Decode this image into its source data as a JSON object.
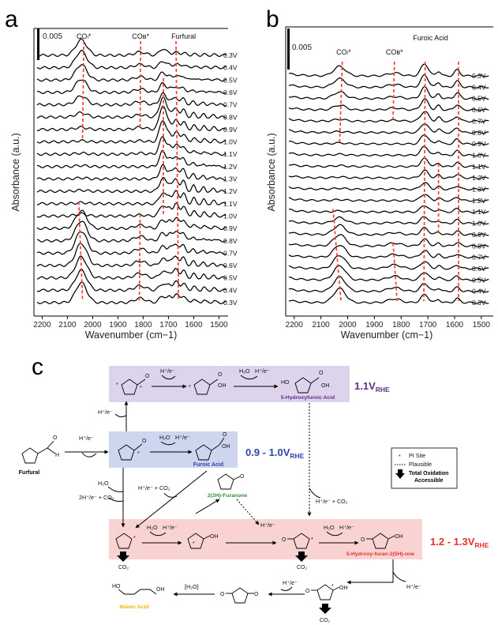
{
  "panels": {
    "a": "a",
    "b": "b",
    "c": "c"
  },
  "common": {
    "xlabel": "Wavenumber (cm−1)",
    "ylabel": "Absorbance (a.u.)",
    "scale_label": "0.005",
    "xticks": [
      2200,
      2100,
      2000,
      1900,
      1800,
      1700,
      1600,
      1500
    ]
  },
  "chart_data": [
    {
      "type": "line",
      "panel": "a",
      "xlim": [
        2220,
        1470
      ],
      "xlabel": "Wavenumber (cm−1)",
      "ylabel": "Absorbance (a.u.)",
      "scale_bar": "0.005",
      "annotations": [
        {
          "text": "COₗ*",
          "x": 2035
        },
        {
          "text": "COʙ*",
          "x": 1810
        },
        {
          "text": "Furfural",
          "x": 1640
        }
      ],
      "series": [
        {
          "name": "0.3V",
          "co_l": 0.7,
          "co_b": 0.15,
          "bands": 0.25,
          "c1700": 0.3
        },
        {
          "name": "0.4V",
          "co_l": 0.75,
          "co_b": 0.15,
          "bands": 0.3,
          "c1700": 0.3
        },
        {
          "name": "0.5V",
          "co_l": 0.7,
          "co_b": 0.15,
          "bands": 0.4,
          "c1700": 0.35
        },
        {
          "name": "0.6V",
          "co_l": 0.6,
          "co_b": 0.15,
          "bands": 0.5,
          "c1700": 0.4
        },
        {
          "name": "0.7V",
          "co_l": 0.4,
          "co_b": 0.15,
          "bands": 0.6,
          "c1700": 0.5
        },
        {
          "name": "0.8V",
          "co_l": 0.2,
          "co_b": 0.1,
          "bands": 0.7,
          "c1700": 0.9
        },
        {
          "name": "0.9V",
          "co_l": 0.1,
          "co_b": 0.1,
          "bands": 0.75,
          "c1700": 1.1
        },
        {
          "name": "1.0V",
          "co_l": 0.05,
          "co_b": 0.05,
          "bands": 0.8,
          "c1700": 1.0
        },
        {
          "name": "1.1V",
          "co_l": 0.05,
          "co_b": 0.05,
          "bands": 0.85,
          "c1700": 0.8
        },
        {
          "name": "1.2V",
          "co_l": 0.05,
          "co_b": 0.0,
          "bands": 0.9,
          "c1700": 0.7
        },
        {
          "name": "1.3V",
          "co_l": 0.05,
          "co_b": 0.0,
          "bands": 0.95,
          "c1700": 0.6
        },
        {
          "name": "1.2V",
          "co_l": 0.05,
          "co_b": 0.0,
          "bands": 1.0,
          "c1700": 0.6
        },
        {
          "name": "1.1V",
          "co_l": 0.05,
          "co_b": 0.0,
          "bands": 1.0,
          "c1700": 0.5
        },
        {
          "name": "1.0V",
          "co_l": 0.1,
          "co_b": 0.05,
          "bands": 1.0,
          "c1700": 0.5
        },
        {
          "name": "0.9V",
          "co_l": 0.8,
          "co_b": 0.15,
          "bands": 0.9,
          "c1700": 0.4
        },
        {
          "name": "0.8V",
          "co_l": 0.9,
          "co_b": 0.2,
          "bands": 0.85,
          "c1700": 0.35
        },
        {
          "name": "0.7V",
          "co_l": 1.0,
          "co_b": 0.2,
          "bands": 0.8,
          "c1700": 0.3
        },
        {
          "name": "0.6V",
          "co_l": 1.0,
          "co_b": 0.2,
          "bands": 0.75,
          "c1700": 0.3
        },
        {
          "name": "0.5V",
          "co_l": 0.95,
          "co_b": 0.2,
          "bands": 0.7,
          "c1700": 0.3
        },
        {
          "name": "0.4V",
          "co_l": 0.9,
          "co_b": 0.2,
          "bands": 0.7,
          "c1700": 0.3
        },
        {
          "name": "0.3V",
          "co_l": 0.9,
          "co_b": 0.2,
          "bands": 0.7,
          "c1700": 0.3
        }
      ],
      "markers": [
        {
          "x": [
            2035,
            2040
          ],
          "rows": [
            0,
            7
          ]
        },
        {
          "x": [
            1810,
            1812
          ],
          "rows": [
            0,
            6
          ]
        },
        {
          "x": [
            1670,
            1660
          ],
          "rows": [
            0,
            20
          ]
        },
        {
          "x": [
            1720,
            1720
          ],
          "rows": [
            3,
            13
          ]
        },
        {
          "x": [
            2055,
            2040
          ],
          "rows": [
            13,
            20
          ]
        },
        {
          "x": [
            1812,
            1815
          ],
          "rows": [
            14,
            20
          ]
        }
      ]
    },
    {
      "type": "line",
      "panel": "b",
      "xlim": [
        2220,
        1470
      ],
      "xlabel": "Wavenumber (cm−1)",
      "ylabel": "Absorbance (a.u.)",
      "scale_bar": "0.005",
      "annotations": [
        {
          "text": "COₗ*",
          "x": 2015
        },
        {
          "text": "COʙ*",
          "x": 1825
        },
        {
          "text": "Furoic Acid",
          "x": 1690
        }
      ],
      "series": [
        {
          "name": "0.3V",
          "co_l": 0.5,
          "co_b": 0.15,
          "fa": 0.9
        },
        {
          "name": "0.4V",
          "co_l": 0.45,
          "co_b": 0.15,
          "fa": 0.9
        },
        {
          "name": "0.5V",
          "co_l": 0.35,
          "co_b": 0.1,
          "fa": 0.85
        },
        {
          "name": "0.6V",
          "co_l": 0.25,
          "co_b": 0.1,
          "fa": 0.8
        },
        {
          "name": "0.7V",
          "co_l": 0.1,
          "co_b": 0.05,
          "fa": 0.75
        },
        {
          "name": "0.8V",
          "co_l": 0.05,
          "co_b": 0.0,
          "fa": 0.7
        },
        {
          "name": "0.9V",
          "co_l": 0.05,
          "co_b": 0.0,
          "fa": 0.7
        },
        {
          "name": "1.0V",
          "co_l": 0.05,
          "co_b": 0.0,
          "fa": 0.65
        },
        {
          "name": "1.1V",
          "co_l": 0.05,
          "co_b": 0.0,
          "fa": 0.6
        },
        {
          "name": "1.2V",
          "co_l": 0.05,
          "co_b": 0.0,
          "fa": 0.55
        },
        {
          "name": "1.3V",
          "co_l": 0.05,
          "co_b": 0.0,
          "fa": 0.5
        },
        {
          "name": "1.2V",
          "co_l": 0.05,
          "co_b": 0.0,
          "fa": 0.5
        },
        {
          "name": "1.1V",
          "co_l": 0.05,
          "co_b": 0.0,
          "fa": 0.5
        },
        {
          "name": "1.0V",
          "co_l": 0.3,
          "co_b": 0.05,
          "fa": 0.5
        },
        {
          "name": "0.9V",
          "co_l": 0.5,
          "co_b": 0.1,
          "fa": 0.5
        },
        {
          "name": "0.8V",
          "co_l": 0.6,
          "co_b": 0.15,
          "fa": 0.5
        },
        {
          "name": "0.7V",
          "co_l": 0.65,
          "co_b": 0.15,
          "fa": 0.5
        },
        {
          "name": "0.6V",
          "co_l": 0.7,
          "co_b": 0.2,
          "fa": 0.55
        },
        {
          "name": "0.5V",
          "co_l": 0.75,
          "co_b": 0.2,
          "fa": 0.6
        },
        {
          "name": "0.4V",
          "co_l": 0.75,
          "co_b": 0.2,
          "fa": 0.6
        },
        {
          "name": "0.3V",
          "co_l": 0.75,
          "co_b": 0.2,
          "fa": 0.6
        }
      ],
      "markers": [
        {
          "x": [
            2020,
            2030
          ],
          "rows": [
            0,
            6
          ]
        },
        {
          "x": [
            1825,
            1830
          ],
          "rows": [
            0,
            4
          ]
        },
        {
          "x": [
            1710,
            1715
          ],
          "rows": [
            0,
            20
          ]
        },
        {
          "x": [
            1585,
            1585
          ],
          "rows": [
            0,
            20
          ]
        },
        {
          "x": [
            1660,
            1660
          ],
          "rows": [
            9,
            14
          ]
        },
        {
          "x": [
            2055,
            2025
          ],
          "rows": [
            13,
            20
          ]
        },
        {
          "x": [
            1830,
            1815
          ],
          "rows": [
            16,
            20
          ]
        }
      ]
    }
  ],
  "scheme": {
    "furfural": "Furfural",
    "furoic_acid": "Furoic Acid",
    "hydroxyfuroic_acid": "5-Hydroxyfuroic Acid",
    "furanone": "2(3H)-Furanone",
    "hydroxyfuranone": "5-Hydroxy-furan-2(5H)-one",
    "maleic_acid": "Maleic Acid",
    "range_purple": "1.1V",
    "range_purple_sub": "RHE",
    "range_blue": "0.9 - 1.0V",
    "range_blue_sub": "RHE",
    "range_red": "1.2 - 1.3V",
    "range_red_sub": "RHE",
    "h_e": "H⁺/e⁻",
    "h2o": "H₂O",
    "h2o_bracket": "[H₂O]",
    "h_e_co2": "H⁺/e⁻ + CO₂",
    "two_h_e_co2": "2H⁺/e⁻ + CO₂",
    "co2": "CO₂",
    "oh": "OH",
    "ho": "HO",
    "o": "O",
    "h": "H",
    "star": "*",
    "legend": {
      "pt_site": "Pt Site",
      "plausible": "Plausible",
      "total_oxidation": "Total Oxidation",
      "accessible": "Accessible"
    },
    "colors": {
      "purple_box": "#ddd3ec",
      "blue_box": "#cdd5ef",
      "red_box": "#f9d3d1",
      "purple_text": "#5b2f8c",
      "blue_text": "#2c45a8",
      "red_text": "#e8302a",
      "green_text": "#2e8b3a",
      "yellow_text": "#f0b400"
    }
  }
}
